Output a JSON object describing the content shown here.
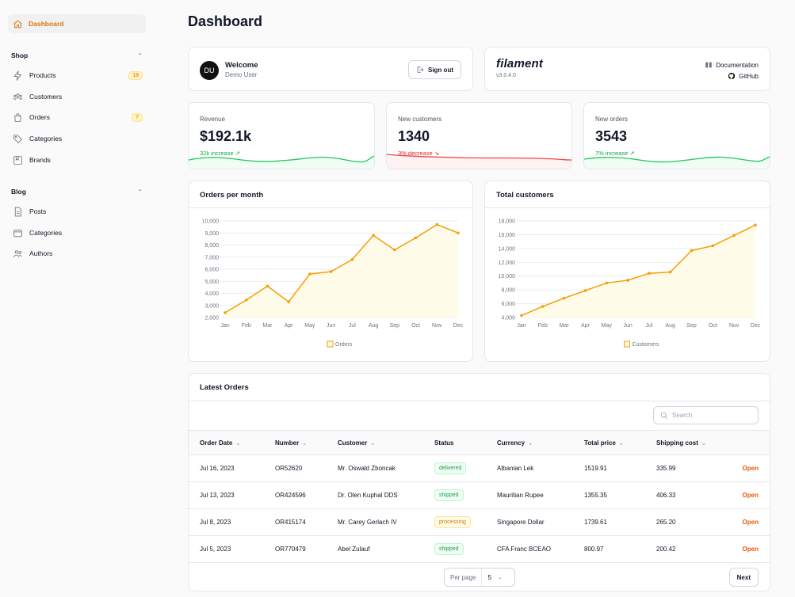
{
  "sidebar": {
    "active": {
      "label": "Dashboard",
      "icon": "home-icon"
    },
    "groups": [
      {
        "label": "Shop",
        "items": [
          {
            "label": "Products",
            "icon": "bolt-icon",
            "badge": "18"
          },
          {
            "label": "Customers",
            "icon": "users-icon",
            "badge": ""
          },
          {
            "label": "Orders",
            "icon": "shopping-bag-icon",
            "badge": "7"
          },
          {
            "label": "Categories",
            "icon": "tag-icon",
            "badge": ""
          },
          {
            "label": "Brands",
            "icon": "bookmark-square-icon",
            "badge": ""
          }
        ]
      },
      {
        "label": "Blog",
        "items": [
          {
            "label": "Posts",
            "icon": "document-icon"
          },
          {
            "label": "Categories",
            "icon": "folder-icon"
          },
          {
            "label": "Authors",
            "icon": "users-icon"
          }
        ]
      }
    ]
  },
  "page": {
    "title": "Dashboard"
  },
  "welcome": {
    "avatar": "DU",
    "title": "Welcome",
    "user": "Demo User",
    "signout": "Sign out"
  },
  "filament": {
    "logo": "filament",
    "version": "v3.0.4.0",
    "docs": "Documentation",
    "github": "GitHub"
  },
  "stats": [
    {
      "label": "Revenue",
      "value": "$192.1k",
      "desc": "32k increase ↗",
      "trend": "up",
      "color": "#22c55e"
    },
    {
      "label": "New customers",
      "value": "1340",
      "desc": "3% decrease ↘",
      "trend": "down",
      "color": "#ef4444"
    },
    {
      "label": "New orders",
      "value": "3543",
      "desc": "7% increase ↗",
      "trend": "up",
      "color": "#22c55e"
    }
  ],
  "chart_data": [
    {
      "type": "area",
      "title": "Orders per month",
      "categories": [
        "Jan",
        "Feb",
        "Mar",
        "Apr",
        "May",
        "Jun",
        "Jul",
        "Aug",
        "Sep",
        "Oct",
        "Nov",
        "Dec"
      ],
      "series": [
        {
          "name": "Orders",
          "values": [
            2400,
            3450,
            4600,
            3300,
            5600,
            5800,
            6800,
            8800,
            7600,
            8600,
            9700,
            9000
          ]
        }
      ],
      "yticks": [
        "2,000",
        "3,000",
        "4,000",
        "5,000",
        "6,000",
        "7,000",
        "8,000",
        "9,000",
        "10,000"
      ],
      "ylim": [
        2000,
        10000
      ],
      "color": "#f59e0b"
    },
    {
      "type": "area",
      "title": "Total customers",
      "categories": [
        "Jan",
        "Feb",
        "Mar",
        "Apr",
        "May",
        "Jun",
        "Jul",
        "Aug",
        "Sep",
        "Oct",
        "Nov",
        "Dec"
      ],
      "series": [
        {
          "name": "Customers",
          "values": [
            4300,
            5600,
            6800,
            7900,
            9000,
            9400,
            10400,
            10600,
            13700,
            14400,
            15900,
            17400
          ]
        }
      ],
      "yticks": [
        "4,000",
        "6,000",
        "8,000",
        "10,000",
        "12,000",
        "14,000",
        "16,000",
        "18,000"
      ],
      "ylim": [
        4000,
        18000
      ],
      "color": "#f59e0b"
    }
  ],
  "orders": {
    "title": "Latest Orders",
    "search_placeholder": "Search",
    "columns": [
      "Order Date",
      "Number",
      "Customer",
      "Status",
      "Currency",
      "Total price",
      "Shipping cost"
    ],
    "rows": [
      {
        "date": "Jul 16, 2023",
        "number": "OR52620",
        "customer": "Mr. Oswald Zboncak",
        "status": "delivered",
        "currency": "Albanian Lek",
        "total": "1519.91",
        "shipping": "335.99",
        "action": "Open"
      },
      {
        "date": "Jul 13, 2023",
        "number": "OR424596",
        "customer": "Dr. Olen Kuphal DDS",
        "status": "shipped",
        "currency": "Mauritian Rupee",
        "total": "1355.35",
        "shipping": "406.33",
        "action": "Open"
      },
      {
        "date": "Jul 8, 2023",
        "number": "OR415174",
        "customer": "Mr. Carey Gerlach IV",
        "status": "processing",
        "currency": "Singapore Dollar",
        "total": "1739.61",
        "shipping": "265.20",
        "action": "Open"
      },
      {
        "date": "Jul 5, 2023",
        "number": "OR770479",
        "customer": "Abel Zulauf",
        "status": "shipped",
        "currency": "CFA Franc BCEAO",
        "total": "800.97",
        "shipping": "200.42",
        "action": "Open"
      }
    ],
    "per_page_label": "Per page",
    "per_page_value": "5",
    "next_label": "Next"
  }
}
